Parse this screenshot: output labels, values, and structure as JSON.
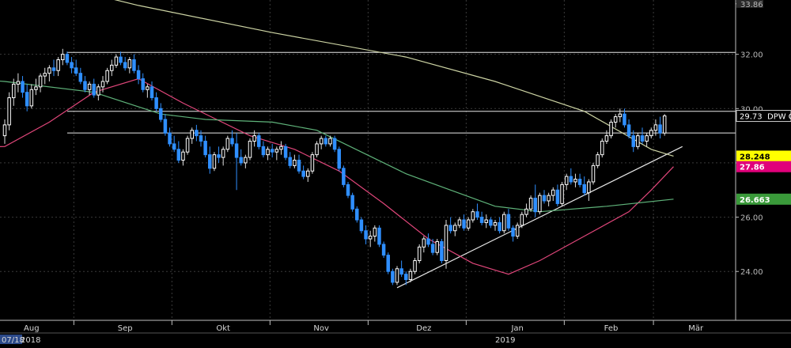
{
  "chart_data": {
    "type": "candlestick",
    "instrument_label": "DPW G",
    "price_axis": {
      "range": [
        22.2,
        34.0
      ],
      "tick_labels": [
        {
          "value": 24.0,
          "label": "24.00"
        },
        {
          "value": 26.0,
          "label": "26.00"
        },
        {
          "value": 28.0,
          "label": "28.00"
        },
        {
          "value": 30.0,
          "label": "30.00"
        },
        {
          "value": 32.0,
          "label": "32.00"
        },
        {
          "value": 33.86,
          "label": "33.86"
        }
      ]
    },
    "time_axis": {
      "months": [
        "Aug",
        "Sep",
        "Okt",
        "Nov",
        "Dez",
        "Jan",
        "Feb",
        "Mär"
      ],
      "year_labels": [
        {
          "label": "07/18",
          "at_session": 0
        },
        {
          "label": "2018",
          "at_session": 6
        },
        {
          "label": "2019",
          "at_session": 110
        }
      ]
    },
    "session_count": 165,
    "candles": [
      [
        0,
        29.0,
        29.6,
        28.7,
        29.4
      ],
      [
        1,
        29.4,
        30.6,
        29.2,
        30.4
      ],
      [
        2,
        30.4,
        31.1,
        30.1,
        30.9
      ],
      [
        3,
        30.9,
        31.3,
        30.6,
        31.0
      ],
      [
        4,
        31.0,
        31.2,
        30.4,
        30.6
      ],
      [
        5,
        30.6,
        30.9,
        29.9,
        30.1
      ],
      [
        6,
        30.1,
        30.9,
        30.0,
        30.7
      ],
      [
        7,
        30.7,
        31.1,
        30.5,
        30.8
      ],
      [
        8,
        30.8,
        31.3,
        30.6,
        31.2
      ],
      [
        9,
        31.2,
        31.5,
        30.9,
        31.3
      ],
      [
        10,
        31.3,
        31.6,
        31.0,
        31.5
      ],
      [
        11,
        31.5,
        31.8,
        31.2,
        31.4
      ],
      [
        12,
        31.4,
        31.9,
        31.2,
        31.8
      ],
      [
        13,
        31.8,
        32.2,
        31.6,
        32.0
      ],
      [
        14,
        32.0,
        32.1,
        31.6,
        31.7
      ],
      [
        15,
        31.7,
        31.9,
        31.3,
        31.5
      ],
      [
        16,
        31.5,
        31.8,
        31.2,
        31.3
      ],
      [
        17,
        31.3,
        31.5,
        30.9,
        31.0
      ],
      [
        18,
        31.0,
        31.2,
        30.6,
        30.7
      ],
      [
        19,
        30.7,
        31.0,
        30.5,
        30.9
      ],
      [
        20,
        30.9,
        31.1,
        30.4,
        30.5
      ],
      [
        21,
        30.5,
        30.9,
        30.3,
        30.8
      ],
      [
        22,
        30.8,
        31.2,
        30.6,
        31.0
      ],
      [
        23,
        31.0,
        31.5,
        30.9,
        31.4
      ],
      [
        24,
        31.4,
        31.8,
        31.2,
        31.6
      ],
      [
        25,
        31.6,
        32.0,
        31.5,
        31.9
      ],
      [
        26,
        31.9,
        32.1,
        31.6,
        31.7
      ],
      [
        27,
        31.7,
        31.9,
        31.4,
        31.5
      ],
      [
        28,
        31.5,
        31.9,
        31.3,
        31.8
      ],
      [
        29,
        31.8,
        32.0,
        31.3,
        31.4
      ],
      [
        30,
        31.4,
        31.6,
        30.9,
        31.1
      ],
      [
        31,
        31.1,
        31.3,
        30.6,
        30.7
      ],
      [
        32,
        30.7,
        30.9,
        30.4,
        30.8
      ],
      [
        33,
        30.8,
        31.0,
        30.3,
        30.4
      ],
      [
        34,
        30.4,
        30.6,
        29.9,
        30.0
      ],
      [
        35,
        30.0,
        30.2,
        29.5,
        29.6
      ],
      [
        36,
        29.6,
        29.8,
        29.0,
        29.1
      ],
      [
        37,
        29.1,
        29.3,
        28.6,
        28.7
      ],
      [
        38,
        28.7,
        29.0,
        28.4,
        28.5
      ],
      [
        39,
        28.5,
        28.8,
        28.0,
        28.1
      ],
      [
        40,
        28.1,
        28.5,
        27.9,
        28.4
      ],
      [
        41,
        28.4,
        29.0,
        28.3,
        28.9
      ],
      [
        42,
        28.9,
        29.3,
        28.7,
        29.2
      ],
      [
        43,
        29.2,
        29.4,
        28.8,
        29.0
      ],
      [
        44,
        29.0,
        29.2,
        28.6,
        28.8
      ],
      [
        45,
        28.8,
        29.0,
        28.2,
        28.3
      ],
      [
        46,
        28.3,
        28.6,
        27.6,
        27.8
      ],
      [
        47,
        27.8,
        28.4,
        27.7,
        28.3
      ],
      [
        48,
        28.3,
        28.6,
        28.0,
        28.2
      ],
      [
        49,
        28.2,
        28.6,
        27.9,
        28.5
      ],
      [
        50,
        28.5,
        29.0,
        28.4,
        28.9
      ],
      [
        51,
        28.9,
        29.2,
        28.6,
        28.7
      ],
      [
        52,
        28.7,
        29.1,
        27.0,
        28.2
      ],
      [
        53,
        28.2,
        28.5,
        27.9,
        28.0
      ],
      [
        54,
        28.0,
        28.3,
        27.8,
        28.2
      ],
      [
        55,
        28.2,
        28.9,
        28.1,
        28.8
      ],
      [
        56,
        28.8,
        29.2,
        28.6,
        29.0
      ],
      [
        57,
        29.0,
        29.1,
        28.5,
        28.6
      ],
      [
        58,
        28.6,
        28.8,
        28.2,
        28.3
      ],
      [
        59,
        28.3,
        28.6,
        28.1,
        28.5
      ],
      [
        60,
        28.5,
        28.7,
        28.2,
        28.4
      ],
      [
        61,
        28.4,
        28.6,
        28.1,
        28.5
      ],
      [
        62,
        28.5,
        28.8,
        28.3,
        28.6
      ],
      [
        63,
        28.6,
        28.7,
        28.1,
        28.2
      ],
      [
        64,
        28.2,
        28.4,
        27.8,
        27.9
      ],
      [
        65,
        27.9,
        28.3,
        27.8,
        28.1
      ],
      [
        66,
        28.1,
        28.3,
        27.6,
        27.7
      ],
      [
        67,
        27.7,
        27.9,
        27.4,
        27.5
      ],
      [
        68,
        27.5,
        27.8,
        27.3,
        27.7
      ],
      [
        69,
        27.7,
        28.4,
        27.6,
        28.3
      ],
      [
        70,
        28.3,
        28.8,
        28.2,
        28.7
      ],
      [
        71,
        28.7,
        29.0,
        28.5,
        28.9
      ],
      [
        72,
        28.9,
        29.0,
        28.6,
        28.7
      ],
      [
        73,
        28.7,
        29.0,
        28.6,
        28.9
      ],
      [
        74,
        28.9,
        29.0,
        28.4,
        28.5
      ],
      [
        75,
        28.5,
        28.6,
        27.7,
        27.8
      ],
      [
        76,
        27.8,
        27.9,
        27.1,
        27.2
      ],
      [
        77,
        27.2,
        27.3,
        26.7,
        26.8
      ],
      [
        78,
        26.8,
        26.9,
        26.2,
        26.3
      ],
      [
        79,
        26.3,
        26.4,
        25.8,
        25.9
      ],
      [
        80,
        25.9,
        26.0,
        25.4,
        25.5
      ],
      [
        81,
        25.5,
        25.7,
        25.0,
        25.2
      ],
      [
        82,
        25.2,
        25.5,
        24.9,
        25.3
      ],
      [
        83,
        25.3,
        25.7,
        25.1,
        25.6
      ],
      [
        84,
        25.6,
        25.7,
        24.9,
        25.0
      ],
      [
        85,
        25.0,
        25.1,
        24.5,
        24.6
      ],
      [
        86,
        24.6,
        24.7,
        23.9,
        24.0
      ],
      [
        87,
        24.0,
        24.1,
        23.5,
        23.6
      ],
      [
        88,
        23.6,
        24.2,
        23.5,
        24.1
      ],
      [
        89,
        24.1,
        24.4,
        23.8,
        23.9
      ],
      [
        90,
        23.9,
        24.0,
        23.5,
        23.7
      ],
      [
        91,
        23.7,
        24.1,
        23.6,
        24.0
      ],
      [
        92,
        24.0,
        24.5,
        23.9,
        24.4
      ],
      [
        93,
        24.4,
        25.0,
        24.3,
        24.9
      ],
      [
        94,
        24.9,
        25.3,
        24.7,
        25.2
      ],
      [
        95,
        25.2,
        25.4,
        24.9,
        25.0
      ],
      [
        96,
        25.0,
        25.2,
        24.6,
        24.7
      ],
      [
        97,
        24.7,
        25.2,
        24.6,
        25.1
      ],
      [
        98,
        25.1,
        25.2,
        24.3,
        24.4
      ],
      [
        99,
        24.4,
        25.9,
        24.1,
        25.7
      ],
      [
        100,
        25.7,
        26.0,
        25.4,
        25.5
      ],
      [
        101,
        25.5,
        25.8,
        25.3,
        25.7
      ],
      [
        102,
        25.7,
        26.0,
        25.6,
        25.9
      ],
      [
        103,
        25.9,
        26.1,
        25.5,
        25.6
      ],
      [
        104,
        25.6,
        26.0,
        25.5,
        25.9
      ],
      [
        105,
        25.9,
        26.3,
        25.8,
        26.2
      ],
      [
        106,
        26.2,
        26.5,
        25.9,
        26.0
      ],
      [
        107,
        26.0,
        26.2,
        25.7,
        25.8
      ],
      [
        108,
        25.8,
        26.1,
        25.6,
        25.9
      ],
      [
        109,
        25.9,
        26.0,
        25.6,
        25.7
      ],
      [
        110,
        25.7,
        25.9,
        25.5,
        25.8
      ],
      [
        111,
        25.8,
        26.0,
        25.4,
        25.5
      ],
      [
        112,
        25.5,
        26.2,
        25.4,
        26.1
      ],
      [
        113,
        26.1,
        26.3,
        25.5,
        25.6
      ],
      [
        114,
        25.6,
        25.7,
        25.1,
        25.3
      ],
      [
        115,
        25.3,
        25.8,
        25.2,
        25.7
      ],
      [
        116,
        25.7,
        26.2,
        25.6,
        26.1
      ],
      [
        117,
        26.1,
        26.5,
        26.0,
        26.3
      ],
      [
        118,
        26.3,
        26.8,
        26.2,
        26.7
      ],
      [
        119,
        26.7,
        27.2,
        26.0,
        26.2
      ],
      [
        120,
        26.2,
        26.9,
        26.1,
        26.8
      ],
      [
        121,
        26.8,
        27.0,
        26.5,
        26.6
      ],
      [
        122,
        26.6,
        26.9,
        26.4,
        26.8
      ],
      [
        123,
        26.8,
        27.1,
        26.6,
        27.0
      ],
      [
        124,
        27.0,
        27.2,
        26.4,
        26.5
      ],
      [
        125,
        26.5,
        27.3,
        26.4,
        27.2
      ],
      [
        126,
        27.2,
        27.6,
        27.0,
        27.5
      ],
      [
        127,
        27.5,
        27.8,
        27.2,
        27.3
      ],
      [
        128,
        27.3,
        27.6,
        27.1,
        27.4
      ],
      [
        129,
        27.4,
        27.6,
        27.1,
        27.2
      ],
      [
        130,
        27.2,
        27.5,
        26.8,
        26.9
      ],
      [
        131,
        26.9,
        27.4,
        26.6,
        27.3
      ],
      [
        132,
        27.3,
        28.0,
        27.2,
        27.9
      ],
      [
        133,
        27.9,
        28.4,
        27.8,
        28.3
      ],
      [
        134,
        28.3,
        28.9,
        28.2,
        28.8
      ],
      [
        135,
        28.8,
        29.2,
        28.7,
        29.0
      ],
      [
        136,
        29.0,
        29.6,
        28.9,
        29.5
      ],
      [
        137,
        29.5,
        29.8,
        29.3,
        29.7
      ],
      [
        138,
        29.7,
        30.0,
        29.5,
        29.8
      ],
      [
        139,
        29.8,
        30.0,
        29.3,
        29.4
      ],
      [
        140,
        29.4,
        29.6,
        28.9,
        29.0
      ],
      [
        141,
        29.0,
        29.2,
        28.4,
        28.6
      ],
      [
        142,
        28.6,
        29.1,
        28.5,
        29.0
      ],
      [
        143,
        29.0,
        29.3,
        28.7,
        28.8
      ],
      [
        144,
        28.8,
        29.1,
        28.6,
        29.0
      ],
      [
        145,
        29.0,
        29.3,
        28.9,
        29.2
      ],
      [
        146,
        29.2,
        29.6,
        29.0,
        29.4
      ],
      [
        147,
        29.4,
        29.7,
        28.9,
        29.1
      ],
      [
        148,
        29.1,
        29.8,
        29.0,
        29.73
      ]
    ],
    "moving_averages": [
      {
        "color": "#cdd4a4",
        "last_value": 28.248,
        "label": "28.248",
        "label_bg": "#ffff00",
        "points": [
          [
            -40,
            36.2
          ],
          [
            0,
            35.0
          ],
          [
            30,
            33.8
          ],
          [
            60,
            32.8
          ],
          [
            90,
            31.9
          ],
          [
            110,
            31.0
          ],
          [
            130,
            29.9
          ],
          [
            145,
            28.5
          ],
          [
            150,
            28.248
          ]
        ]
      },
      {
        "color": "#e0467a",
        "last_value": 27.86,
        "label": "27.86",
        "label_bg": "#e0007a",
        "points": [
          [
            -40,
            28.5
          ],
          [
            0,
            28.6
          ],
          [
            10,
            29.5
          ],
          [
            20,
            30.6
          ],
          [
            30,
            31.1
          ],
          [
            40,
            30.2
          ],
          [
            55,
            29.0
          ],
          [
            65,
            28.5
          ],
          [
            75,
            27.7
          ],
          [
            85,
            26.5
          ],
          [
            95,
            25.2
          ],
          [
            105,
            24.3
          ],
          [
            113,
            23.9
          ],
          [
            120,
            24.4
          ],
          [
            130,
            25.3
          ],
          [
            140,
            26.2
          ],
          [
            145,
            27.0
          ],
          [
            150,
            27.86
          ]
        ]
      },
      {
        "color": "#5fb37a",
        "last_value": 26.663,
        "label": "26.663",
        "label_bg": "#3a9a3a",
        "points": [
          [
            -40,
            31.5
          ],
          [
            0,
            31.0
          ],
          [
            20,
            30.6
          ],
          [
            35,
            29.8
          ],
          [
            45,
            29.6
          ],
          [
            60,
            29.5
          ],
          [
            70,
            29.2
          ],
          [
            80,
            28.4
          ],
          [
            90,
            27.6
          ],
          [
            100,
            27.0
          ],
          [
            110,
            26.4
          ],
          [
            120,
            26.2
          ],
          [
            135,
            26.4
          ],
          [
            150,
            26.663
          ]
        ]
      }
    ],
    "annotations": [
      {
        "type": "horizontal_line",
        "value": 32.07
      },
      {
        "type": "horizontal_line",
        "value": 29.9
      },
      {
        "type": "horizontal_line",
        "value": 29.1
      },
      {
        "type": "trendline",
        "from": [
          88,
          23.4
        ],
        "to": [
          152,
          28.6
        ]
      }
    ],
    "last_price_label": {
      "value": 29.73,
      "label": "29.73",
      "name": "DPW G"
    },
    "colors": {
      "up": "#ffffff",
      "down": "#2f8fff",
      "grid": "#3a3a3a",
      "axis_text": "#d8d8d8",
      "background": "#000000"
    }
  }
}
